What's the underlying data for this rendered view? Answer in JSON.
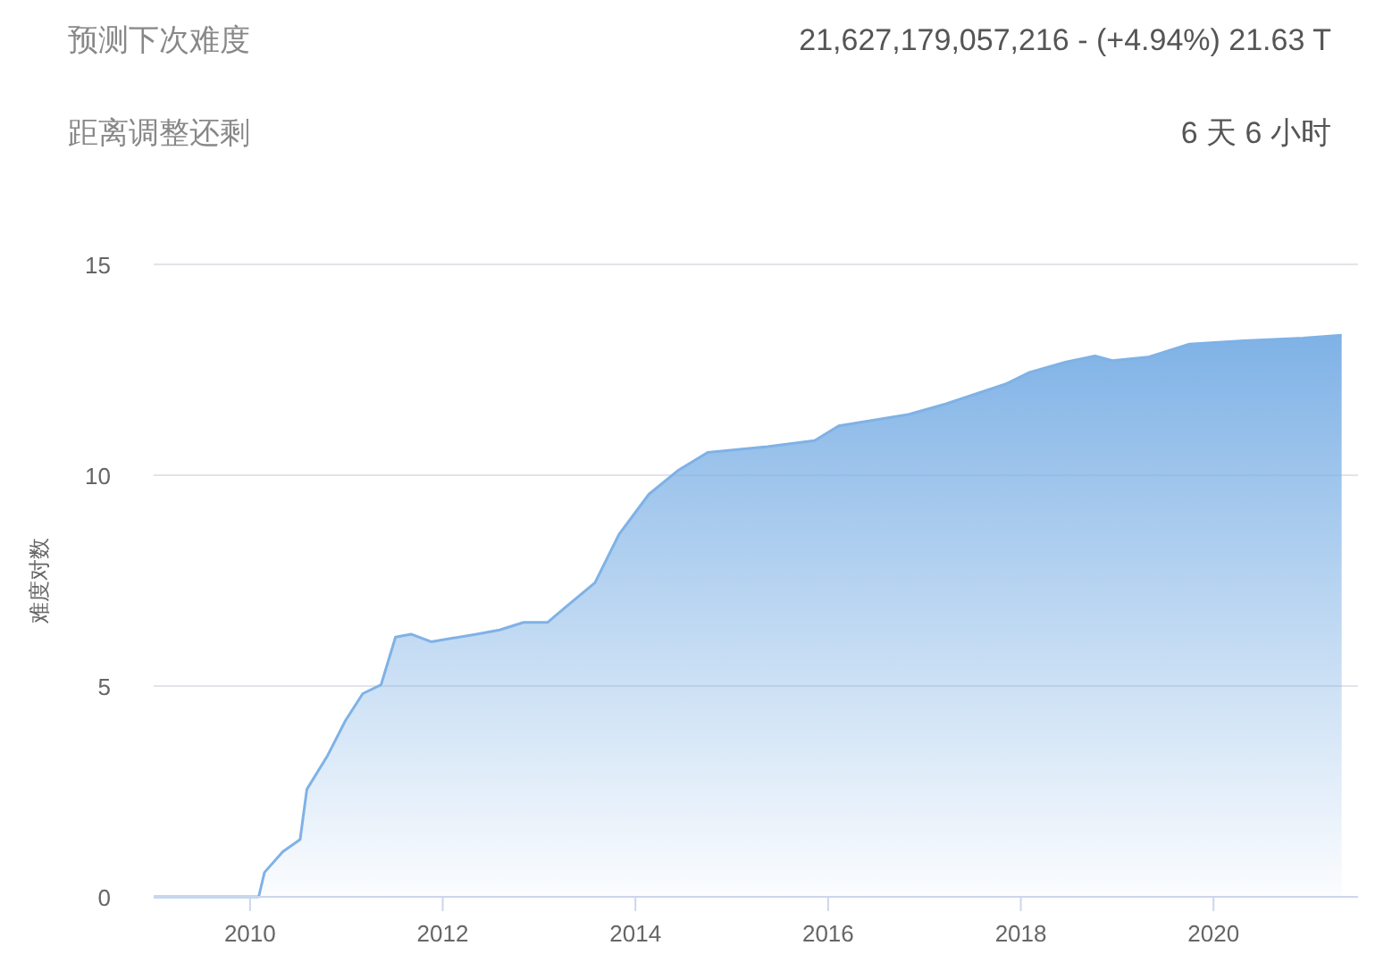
{
  "chart_data": {
    "type": "area",
    "ylabel": "难度对数",
    "annotations": [
      "预测下次难度",
      "21,627,179,057,216 - (+4.94%) 21.63 T",
      "距离调整还剩",
      "6 天 6 小时"
    ],
    "x": [
      2009.0,
      2010.09,
      2010.15,
      2010.34,
      2010.52,
      2010.59,
      2010.8,
      2010.99,
      2011.17,
      2011.36,
      2011.51,
      2011.67,
      2011.88,
      2012.35,
      2012.59,
      2012.84,
      2013.09,
      2013.27,
      2013.58,
      2013.83,
      2014.14,
      2014.44,
      2014.75,
      2015.37,
      2015.86,
      2016.11,
      2016.85,
      2017.22,
      2017.84,
      2018.09,
      2018.46,
      2018.77,
      2018.95,
      2019.32,
      2019.75,
      2020.31,
      2020.93,
      2021.33
    ],
    "series": [
      {
        "color": "#7fb2e6",
        "values": [
          0,
          0,
          0.58,
          1.07,
          1.36,
          2.55,
          3.33,
          4.18,
          4.82,
          5.03,
          6.16,
          6.23,
          6.05,
          6.23,
          6.33,
          6.51,
          6.51,
          6.86,
          7.45,
          8.6,
          9.55,
          10.11,
          10.54,
          10.68,
          10.82,
          11.17,
          11.45,
          11.69,
          12.16,
          12.44,
          12.68,
          12.83,
          12.72,
          12.8,
          13.11,
          13.19,
          13.25,
          13.32
        ]
      }
    ],
    "xlim": [
      2009,
      2021.5
    ],
    "xticks": [
      2010,
      2012,
      2014,
      2016,
      2018,
      2020
    ],
    "ylim": [
      0,
      15
    ],
    "yticks": [
      0,
      5,
      10,
      15
    ],
    "grid": "y"
  }
}
